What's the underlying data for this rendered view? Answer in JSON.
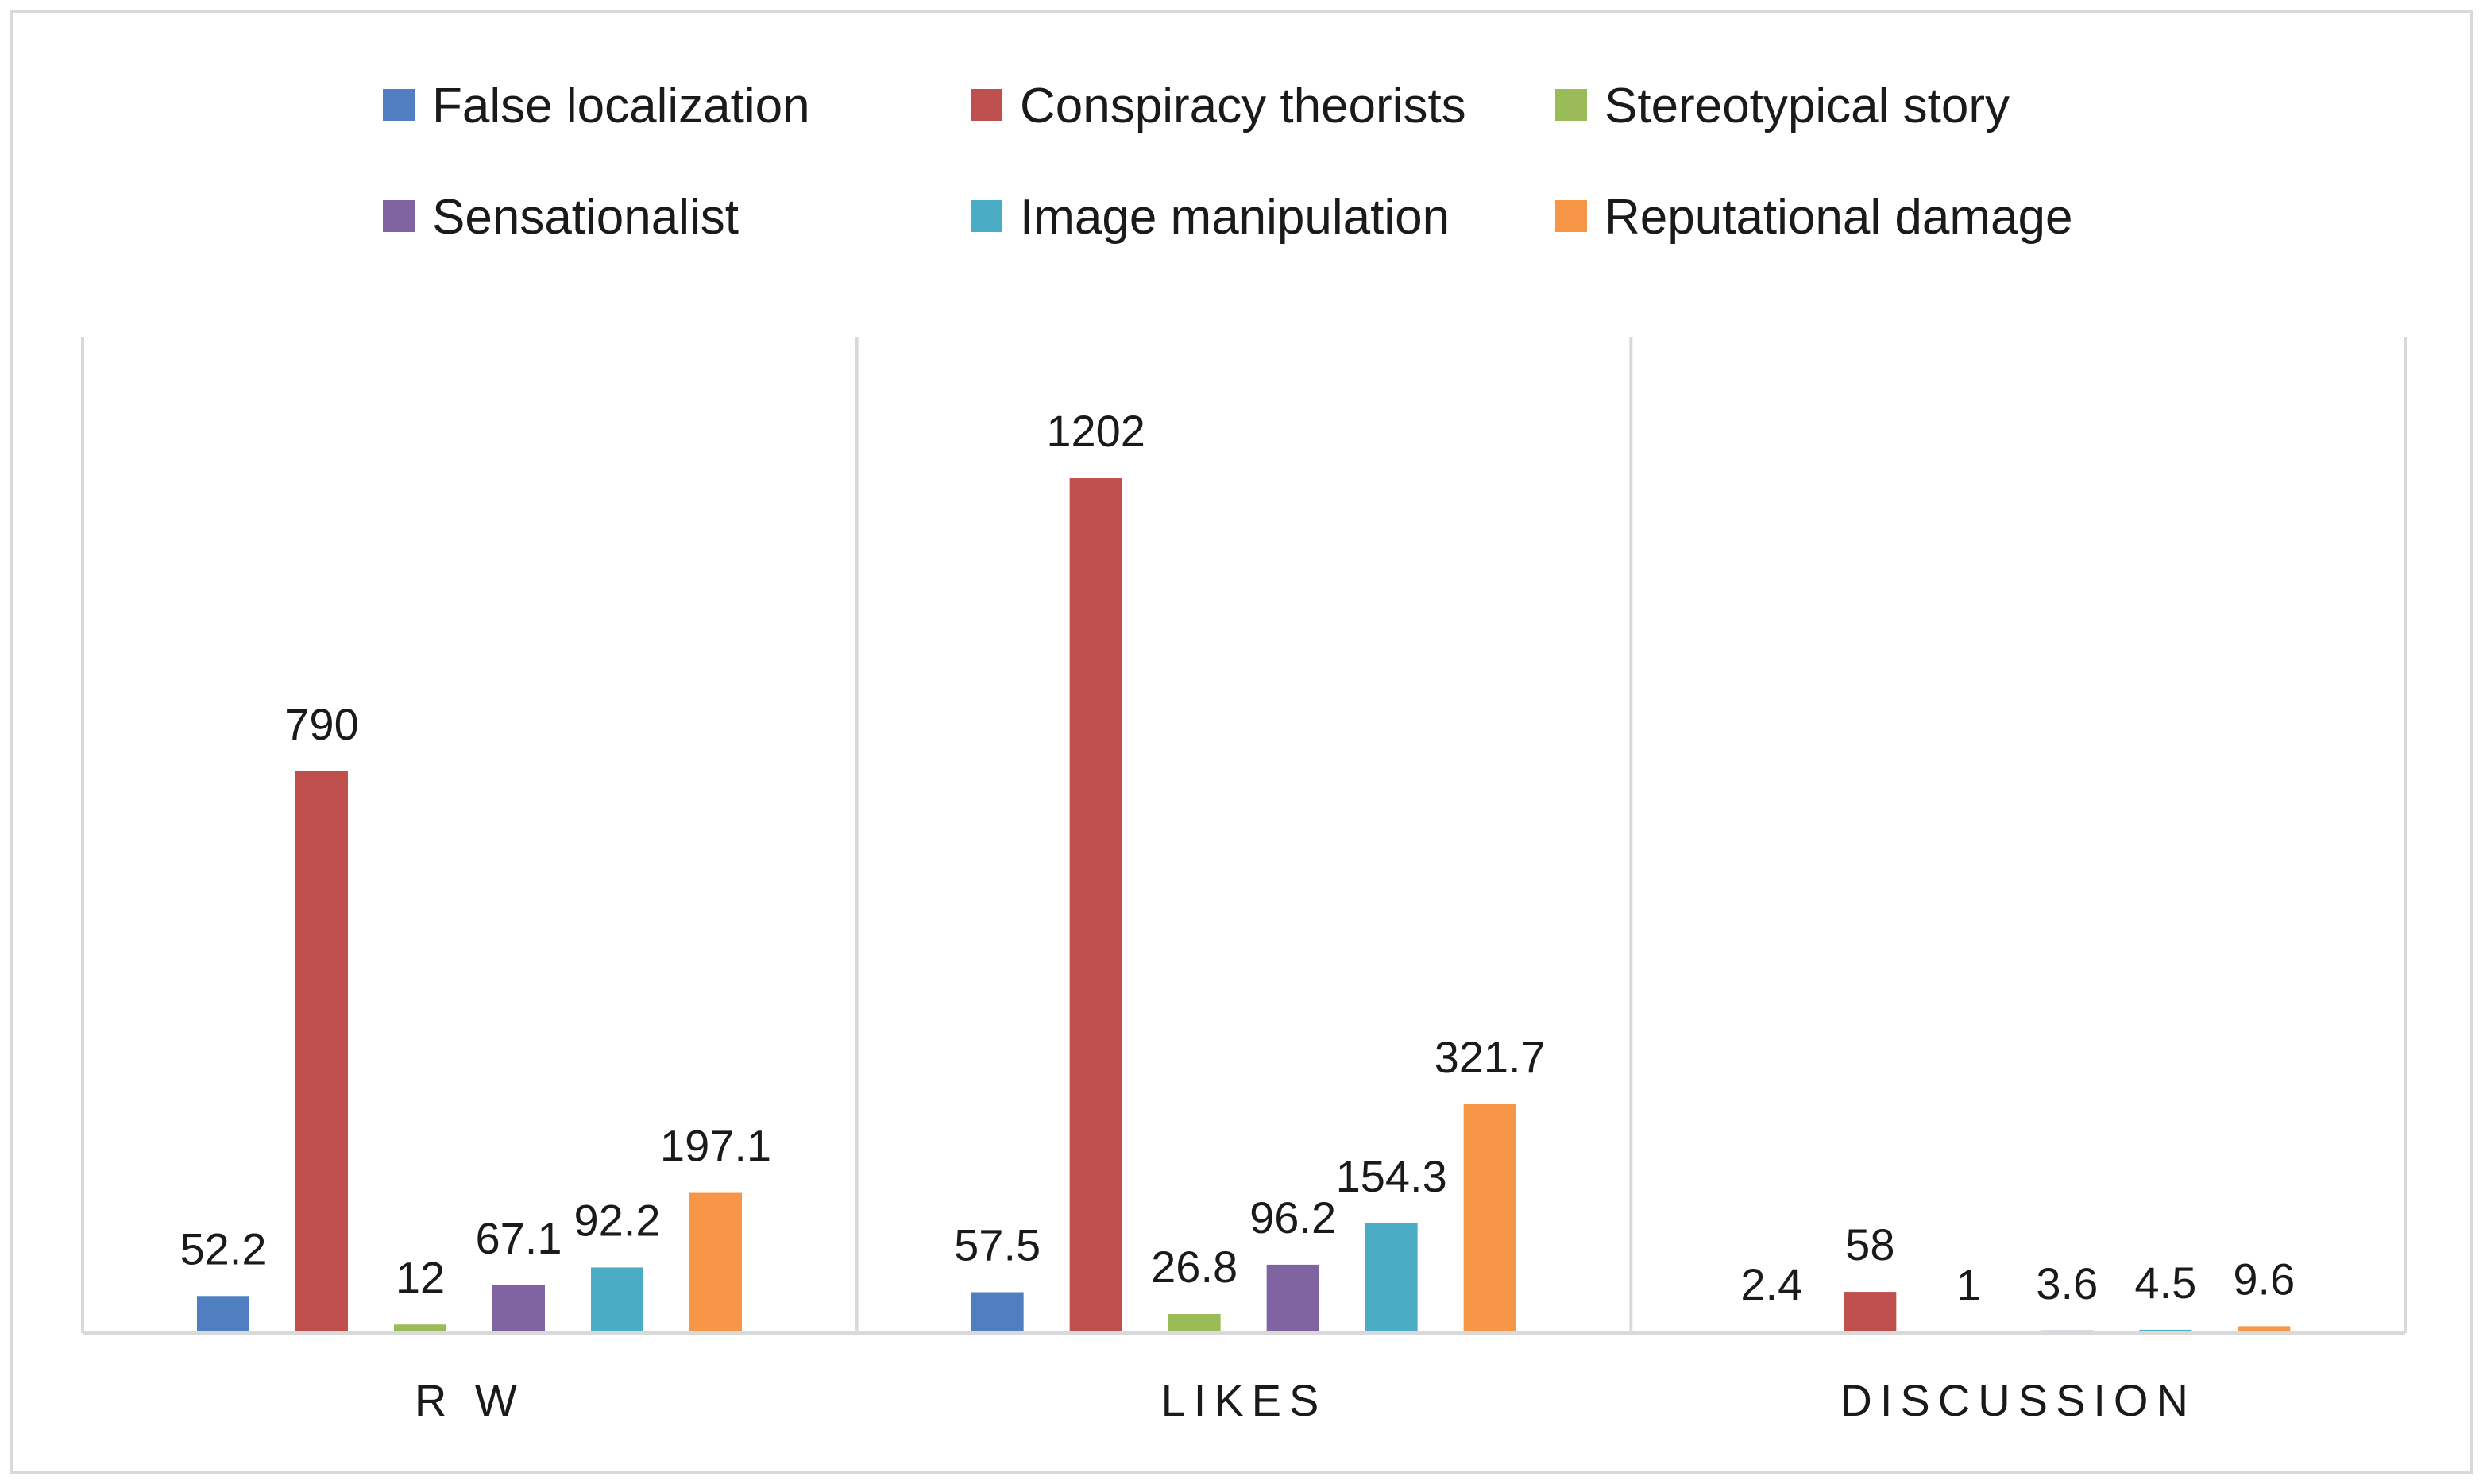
{
  "chart_data": {
    "type": "bar",
    "title": "",
    "xlabel": "",
    "ylabel": "",
    "ylim": [
      0,
      1300
    ],
    "grid": false,
    "legend_position": "top",
    "categories": [
      "R W",
      "LIKES",
      "DISCUSSION"
    ],
    "series": [
      {
        "name": "False localization",
        "color": "#4f7fc0",
        "values": [
          52.2,
          57.5,
          2.4
        ]
      },
      {
        "name": "Conspiracy theorists",
        "color": "#c0504d",
        "values": [
          790,
          1202,
          58
        ]
      },
      {
        "name": "Stereotypical story",
        "color": "#9bbb59",
        "values": [
          12,
          26.8,
          1
        ]
      },
      {
        "name": "Sensationalist",
        "color": "#8064a2",
        "values": [
          67.1,
          96.2,
          3.6
        ]
      },
      {
        "name": "Image manipulation",
        "color": "#4bacc6",
        "values": [
          92.2,
          154.3,
          4.5
        ]
      },
      {
        "name": "Reputational damage",
        "color": "#f79646",
        "values": [
          197.1,
          321.7,
          9.6
        ]
      }
    ]
  }
}
